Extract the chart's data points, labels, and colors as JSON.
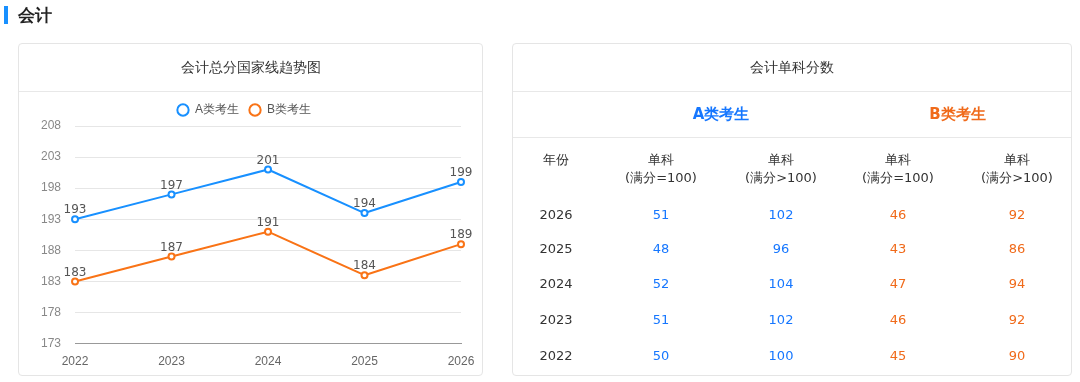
{
  "chart_data": [
    {
      "type": "line",
      "title": "会计总分国家线趋势图",
      "subtitle": "会计",
      "categories": [
        "2022",
        "2023",
        "2024",
        "2025",
        "2026"
      ],
      "series": [
        {
          "name": "A类考生",
          "color": "#1890ff",
          "values": [
            193,
            197,
            201,
            194,
            199
          ]
        },
        {
          "name": "B类考生",
          "color": "#f97316",
          "values": [
            183,
            187,
            191,
            184,
            189
          ]
        }
      ],
      "ylim": [
        173,
        208
      ],
      "yticks": [
        173,
        178,
        183,
        188,
        193,
        198,
        203,
        208
      ],
      "grid": "y",
      "legend": "top",
      "marker": "circle",
      "data_labels": true
    },
    {
      "type": "heatmap",
      "title": "会计单科分数",
      "ylabel": "年份",
      "data_labels": true,
      "annotations": [
        "A类考生",
        "B类考生"
      ],
      "categories": [
        "单科\n(满分=100)",
        "单科\n(满分>100)",
        "单科\n(满分=100)",
        "单科\n(满分>100)"
      ],
      "y_categories": [
        "2026",
        "2025",
        "2024",
        "2023",
        "2022"
      ],
      "cells": [
        [
          51,
          102,
          46,
          92
        ],
        [
          48,
          96,
          43,
          86
        ],
        [
          52,
          104,
          47,
          94
        ],
        [
          51,
          102,
          46,
          92
        ],
        [
          50,
          100,
          45,
          90
        ]
      ]
    }
  ]
}
